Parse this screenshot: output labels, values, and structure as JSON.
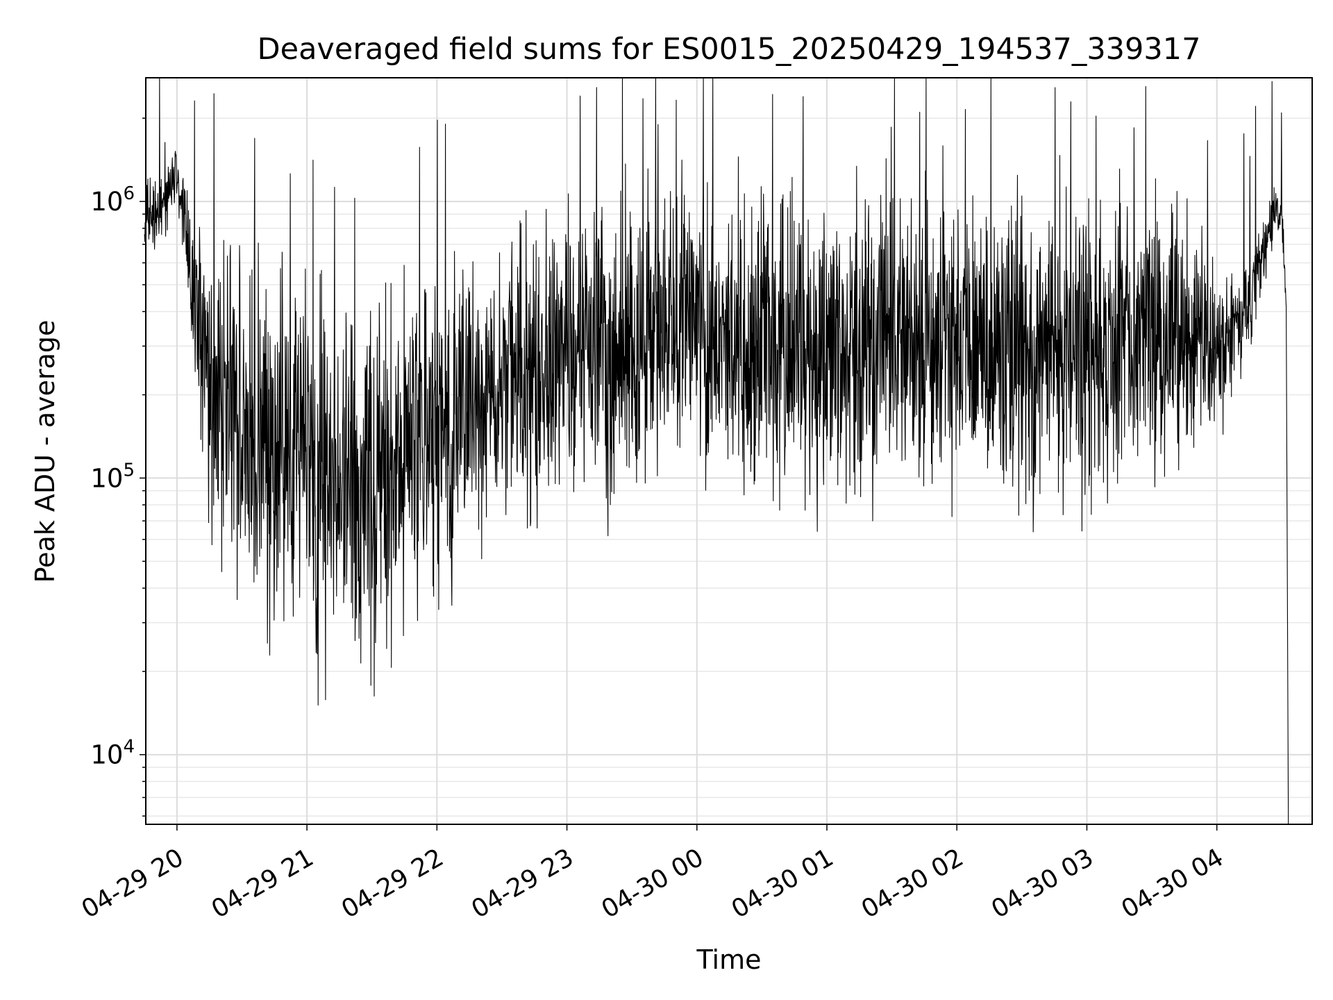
{
  "chart_data": {
    "type": "line",
    "title": "Deaveraged field sums for ES0015_20250429_194537_339317",
    "xlabel": "Time",
    "ylabel": "Peak ADU - average",
    "yscale": "log",
    "ylim": [
      5600,
      2800000
    ],
    "xlim": [
      "2025-04-29 19:45:37",
      "2025-04-30 04:44:00"
    ],
    "grid": true,
    "xticks": [
      "04-29 20",
      "04-29 21",
      "04-29 22",
      "04-29 23",
      "04-30 00",
      "04-30 01",
      "04-30 02",
      "04-30 03",
      "04-30 04"
    ],
    "yticks": [
      {
        "base": "10",
        "exp": "4",
        "value": 10000
      },
      {
        "base": "10",
        "exp": "5",
        "value": 100000
      },
      {
        "base": "10",
        "exp": "6",
        "value": 1000000
      }
    ],
    "series": [
      {
        "color": "#000000",
        "x": [
          "2025-04-29 19:45",
          "2025-04-29 19:50",
          "2025-04-29 19:55",
          "2025-04-29 20:00",
          "2025-04-29 20:05",
          "2025-04-29 20:10",
          "2025-04-29 20:15",
          "2025-04-29 20:20",
          "2025-04-29 20:25",
          "2025-04-29 20:30",
          "2025-04-29 20:35",
          "2025-04-29 20:40",
          "2025-04-29 20:45",
          "2025-04-29 20:50",
          "2025-04-29 20:55",
          "2025-04-29 21:00",
          "2025-04-29 21:10",
          "2025-04-29 21:20",
          "2025-04-29 21:30",
          "2025-04-29 21:40",
          "2025-04-29 21:50",
          "2025-04-29 22:00",
          "2025-04-29 22:10",
          "2025-04-29 22:20",
          "2025-04-29 22:30",
          "2025-04-29 22:40",
          "2025-04-29 22:50",
          "2025-04-29 23:00",
          "2025-04-29 23:15",
          "2025-04-29 23:30",
          "2025-04-29 23:45",
          "2025-04-30 00:00",
          "2025-04-30 00:15",
          "2025-04-30 00:30",
          "2025-04-30 00:45",
          "2025-04-30 01:00",
          "2025-04-30 01:15",
          "2025-04-30 01:30",
          "2025-04-30 01:45",
          "2025-04-30 02:00",
          "2025-04-30 02:15",
          "2025-04-30 02:30",
          "2025-04-30 02:45",
          "2025-04-30 03:00",
          "2025-04-30 03:15",
          "2025-04-30 03:30",
          "2025-04-30 03:45",
          "2025-04-30 04:00",
          "2025-04-30 04:05",
          "2025-04-30 04:10",
          "2025-04-30 04:15",
          "2025-04-30 04:20",
          "2025-04-30 04:25",
          "2025-04-30 04:30",
          "2025-04-30 04:32",
          "2025-04-30 04:33"
        ],
        "y": [
          900000,
          850000,
          1100000,
          1300000,
          700000,
          350000,
          250000,
          200000,
          180000,
          170000,
          150000,
          140000,
          130000,
          120000,
          110000,
          100000,
          95000,
          90000,
          100000,
          110000,
          130000,
          150000,
          170000,
          200000,
          220000,
          240000,
          260000,
          270000,
          290000,
          310000,
          330000,
          330000,
          320000,
          310000,
          300000,
          300000,
          310000,
          320000,
          320000,
          300000,
          290000,
          280000,
          280000,
          290000,
          300000,
          310000,
          300000,
          290000,
          280000,
          350000,
          450000,
          600000,
          850000,
          950000,
          420000,
          5000
        ],
        "spread": [
          1.4,
          1.6,
          1.5,
          1.4,
          1.8,
          2.5,
          4,
          5,
          6,
          6.5,
          7,
          7,
          7,
          7,
          7,
          7,
          7,
          7,
          6.5,
          6,
          6,
          5.5,
          5,
          4.5,
          4.5,
          4.5,
          4.5,
          4.5,
          4.5,
          4.5,
          4.5,
          4.5,
          4.5,
          4.5,
          4.5,
          4.5,
          4.5,
          4.5,
          4.5,
          4.5,
          4.5,
          4.5,
          4.5,
          4.5,
          4.5,
          4.5,
          4,
          2.5,
          2,
          1.8,
          1.6,
          1.5,
          1.4,
          1.3,
          1.1,
          1
        ]
      }
    ]
  }
}
